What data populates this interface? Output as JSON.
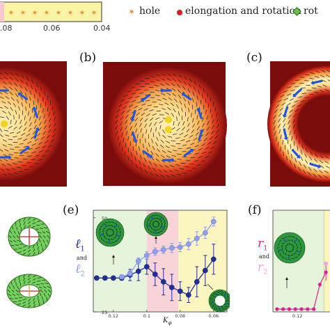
{
  "top_strip": {
    "tick_left": ".08",
    "tick_mid": "0.06",
    "tick_right": "0.04",
    "star_count": 8,
    "band_color": "#fbf3a6",
    "left_band_color": "#f7c9cf"
  },
  "legend": {
    "hole": "hole",
    "elongation": "elongation and rotation",
    "rotation": "rot",
    "hole_color": "#e08a2a",
    "elongation_color": "#d42020",
    "rotation_color": "#6cc04a"
  },
  "panels": {
    "b": "(b)",
    "c": "(c)",
    "e": "(e)",
    "f": "(f)"
  },
  "chart_e": {
    "ylabel_1": "ℓ",
    "ylabel_1_sub": "1",
    "ylabel_and": "and",
    "ylabel_2": "ℓ",
    "ylabel_2_sub": "2",
    "xlabel": "K",
    "xlabel_sub": "φ"
  },
  "chart_f": {
    "ylabel_1": "r",
    "ylabel_1_sub": "1",
    "ylabel_and": "and",
    "ylabel_2": "r",
    "ylabel_2_sub": "2"
  },
  "chart_data": [
    {
      "type": "line",
      "panel": "(e)",
      "xlabel": "Kφ",
      "ylabel": "ℓ1 and ℓ2",
      "x_reversed": true,
      "xlim": [
        0.132,
        0.052
      ],
      "ylim": [
        25,
        52
      ],
      "x_ticks": [
        0.12,
        0.1,
        0.08,
        0.06
      ],
      "y_ticks": [
        25,
        50
      ],
      "regions": [
        {
          "from": 0.132,
          "to": 0.1,
          "color": "#e6f4dc"
        },
        {
          "from": 0.1,
          "to": 0.081,
          "color": "#f8d3d8"
        },
        {
          "from": 0.081,
          "to": 0.052,
          "color": "#fbf5c0"
        }
      ],
      "series": [
        {
          "name": "ℓ1",
          "color": "#1f2f9a",
          "x": [
            0.13,
            0.125,
            0.12,
            0.115,
            0.11,
            0.105,
            0.1,
            0.095,
            0.09,
            0.085,
            0.08,
            0.075,
            0.07,
            0.065,
            0.06
          ],
          "y": [
            34,
            34,
            34,
            34,
            34.8,
            35.8,
            37,
            35,
            33,
            31.5,
            30.5,
            29.5,
            33,
            36,
            39
          ],
          "err": [
            0.5,
            0.5,
            0.5,
            0.6,
            1.5,
            2.5,
            2,
            3,
            3.5,
            3.5,
            2.5,
            2,
            4,
            4,
            4
          ]
        },
        {
          "name": "ℓ2",
          "color": "#8f9ff0",
          "x": [
            0.115,
            0.11,
            0.105,
            0.1,
            0.095,
            0.09,
            0.085,
            0.08,
            0.075,
            0.07,
            0.065,
            0.06
          ],
          "y": [
            34.3,
            35.2,
            38.5,
            40,
            41,
            41.5,
            42,
            42.2,
            43,
            44.5,
            46,
            49
          ],
          "err": [
            0.5,
            0.6,
            0.8,
            1,
            1,
            1,
            1.2,
            1.2,
            1.5,
            1.8,
            1.5,
            1.2
          ]
        }
      ]
    },
    {
      "type": "scatter",
      "panel": "(f)",
      "ylabel": "r1 and r2",
      "x_reversed": true,
      "xlim": [
        0.132,
        0.104
      ],
      "x_ticks": [
        0.12
      ],
      "ylim": [
        0,
        10
      ],
      "series": [
        {
          "name": "r1",
          "color": "#e0208c",
          "x": [
            0.13,
            0.127,
            0.124,
            0.121,
            0.118,
            0.115,
            0.112,
            0.109,
            0.106
          ],
          "y": [
            0,
            0,
            0,
            0,
            0,
            0,
            0,
            2.8,
            4.2
          ]
        },
        {
          "name": "r2",
          "color": "#f2a6d9",
          "x": [
            0.106
          ],
          "y": [
            5.2
          ]
        }
      ]
    }
  ]
}
